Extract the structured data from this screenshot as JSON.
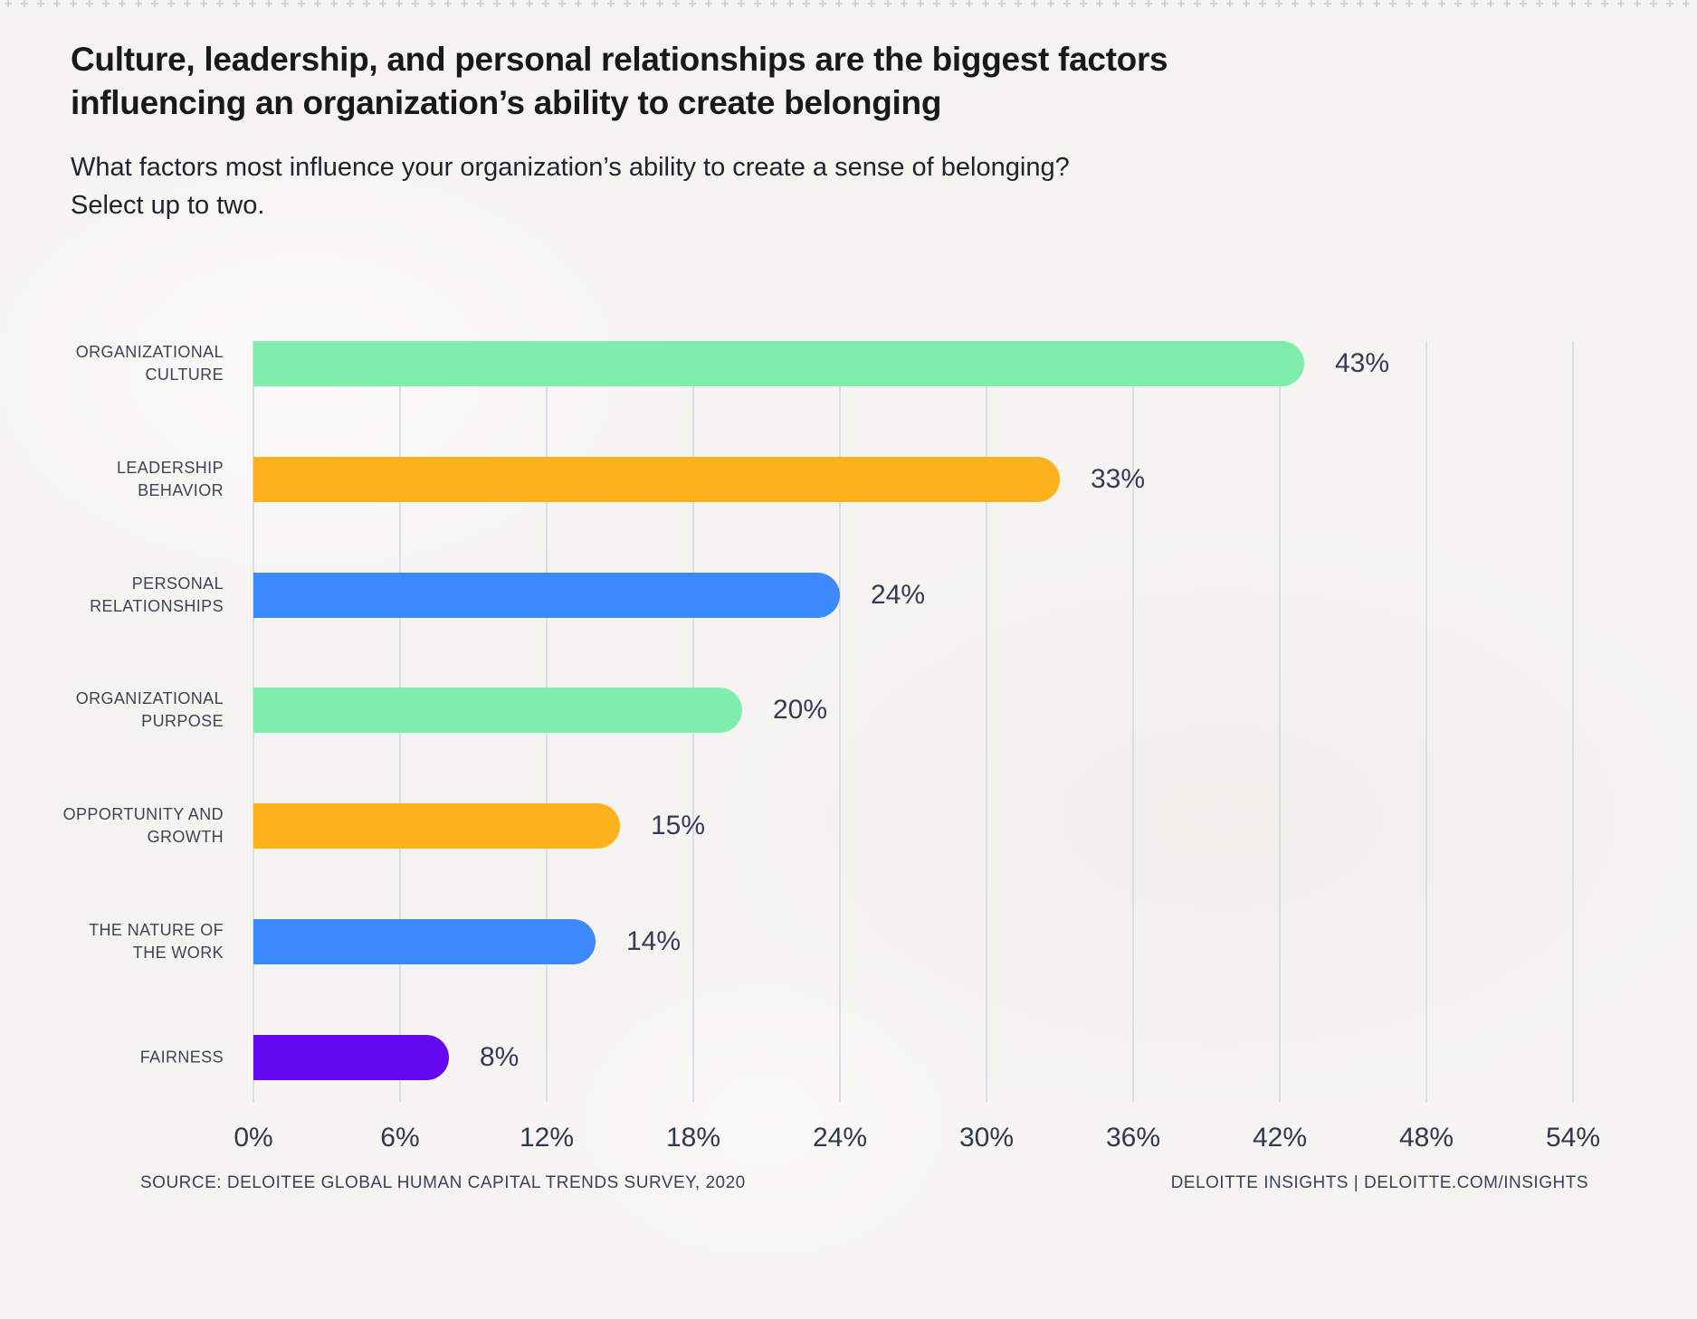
{
  "header": {
    "title_lines": [
      "Culture, leadership, and personal relationships are the biggest factors",
      "influencing an organization’s ability to create belonging"
    ],
    "subtitle_lines": [
      "What factors most influence your organization’s ability to create a sense of belonging?",
      "Select up to two."
    ]
  },
  "chart_data": {
    "type": "bar",
    "orientation": "horizontal",
    "title": "Culture, leadership, and personal relationships are the biggest factors influencing an organization’s ability to create belonging",
    "subtitle": "What factors most influence your organization’s ability to create a sense of belonging? Select up to two.",
    "categories": [
      "ORGANIZATIONAL\nCULTURE",
      "LEADERSHIP\nBEHAVIOR",
      "PERSONAL\nRELATIONSHIPS",
      "ORGANIZATIONAL\nPURPOSE",
      "OPPORTUNITY AND\nGROWTH",
      "THE NATURE OF\nTHE WORK",
      "FAIRNESS"
    ],
    "values": [
      43,
      33,
      24,
      20,
      15,
      14,
      8
    ],
    "value_labels": [
      "43%",
      "33%",
      "24%",
      "20%",
      "15%",
      "14%",
      "8%"
    ],
    "bar_colors": [
      "#7FEDAC",
      "#FDB11D",
      "#3B89FA",
      "#7FEDAC",
      "#FDB11D",
      "#3B89FA",
      "#6207EE"
    ],
    "xlim": [
      0,
      54
    ],
    "x_ticks": [
      "0%",
      "6%",
      "12%",
      "18%",
      "24%",
      "30%",
      "36%",
      "42%",
      "48%",
      "54%"
    ],
    "grid": "vertical-only",
    "legend": "none",
    "xlabel": "",
    "ylabel": ""
  },
  "footer": {
    "source": "SOURCE: DELOITEE GLOBAL HUMAN CAPITAL TRENDS SURVEY, 2020",
    "branding": "DELOITTE INSIGHTS | DELOITTE.COM/INSIGHTS"
  },
  "colors": {
    "background": "#F5F4F1",
    "grid_line": "#DADFE6",
    "title_text": "#191919",
    "subtitle_text": "#20242F",
    "category_label_text": "#3E4458",
    "value_label_text": "#353B55",
    "top_tick_pattern": "#C3CDD7",
    "green": "#7FEDAC",
    "orange": "#FDB11D",
    "blue": "#3B89FA",
    "purple": "#6207EE"
  }
}
